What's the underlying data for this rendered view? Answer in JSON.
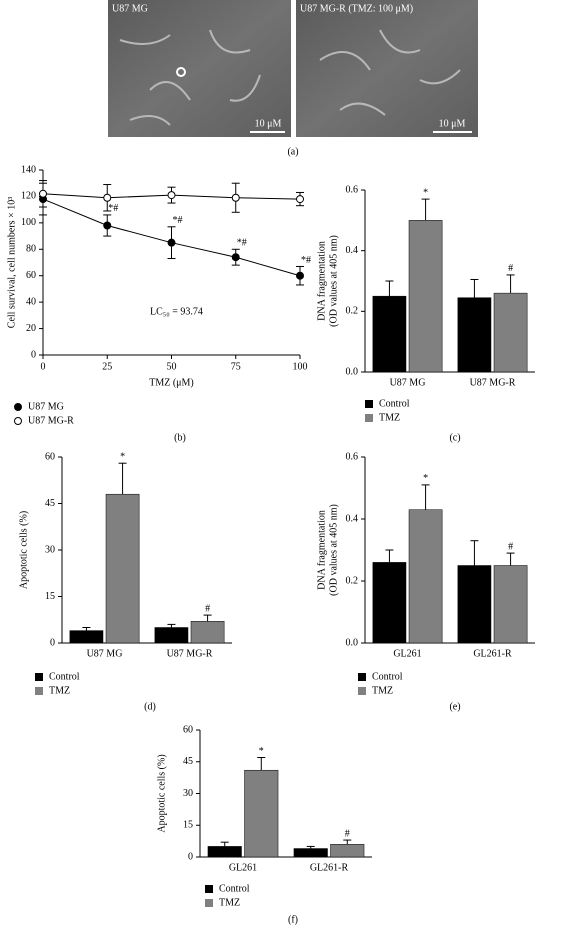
{
  "images": {
    "panel": "(a)",
    "left_label": "U87 MG",
    "right_label": "U87 MG-R (TMZ: 100 μM)",
    "left_scale": "10 μM",
    "right_scale": "10 μM"
  },
  "chart_data": [
    {
      "type": "line",
      "panel": "(b)",
      "ylabel": "Cell survival, cell numbers × 10³",
      "xlabel": "TMZ (μM)",
      "x": [
        0,
        25,
        50,
        75,
        100
      ],
      "xlim": [
        0,
        100
      ],
      "xticks": [
        0,
        25,
        50,
        75,
        100
      ],
      "ylim": [
        0,
        140
      ],
      "yticks": [
        0,
        20,
        40,
        60,
        80,
        100,
        120,
        140
      ],
      "annotation": "LC₅₀ = 93.74",
      "series": [
        {
          "name": "U87 MG",
          "color": "#000000",
          "fill": "#000000",
          "values": [
            118,
            98,
            85,
            74,
            60
          ],
          "errors": [
            12,
            8,
            12,
            6,
            7
          ],
          "annotations": [
            null,
            "*#",
            "*#",
            "*#",
            "*#"
          ]
        },
        {
          "name": "U87 MG-R",
          "color": "#000000",
          "fill": "#ffffff",
          "values": [
            122,
            119,
            121,
            119,
            118
          ],
          "errors": [
            10,
            10,
            6,
            11,
            5
          ],
          "annotations": [
            null,
            null,
            null,
            null,
            null
          ]
        }
      ]
    },
    {
      "type": "bar",
      "panel": "(c)",
      "ylabel": [
        "DNA fragmentation",
        "(OD values at 405 nm)"
      ],
      "categories": [
        "U87 MG",
        "U87 MG-R"
      ],
      "ylim": [
        0,
        0.6
      ],
      "yticks": [
        {
          "value": 0,
          "label": "0.0"
        },
        0.2,
        0.4,
        0.6
      ],
      "series": [
        {
          "name": "Control",
          "color": "#000000",
          "values": [
            0.25,
            0.245
          ],
          "errors": [
            0.05,
            0.06
          ],
          "annotations": [
            null,
            null
          ]
        },
        {
          "name": "TMZ",
          "color": "#808080",
          "values": [
            0.5,
            0.26
          ],
          "errors": [
            0.07,
            0.06
          ],
          "annotations": [
            "*",
            "#"
          ]
        }
      ]
    },
    {
      "type": "bar",
      "panel": "(d)",
      "ylabel": "Apoptotic cells (%)",
      "categories": [
        "U87 MG",
        "U87 MG-R"
      ],
      "ylim": [
        0,
        60
      ],
      "yticks": [
        0,
        15,
        30,
        45,
        60
      ],
      "series": [
        {
          "name": "Control",
          "color": "#000000",
          "values": [
            4,
            5
          ],
          "errors": [
            1,
            1
          ],
          "annotations": [
            null,
            null
          ]
        },
        {
          "name": "TMZ",
          "color": "#808080",
          "values": [
            48,
            7
          ],
          "errors": [
            10,
            2
          ],
          "annotations": [
            "*",
            "#"
          ]
        }
      ]
    },
    {
      "type": "bar",
      "panel": "(e)",
      "ylabel": [
        "DNA fragmentation",
        "(OD values at 405 nm)"
      ],
      "categories": [
        "GL261",
        "GL261-R"
      ],
      "ylim": [
        0,
        0.6
      ],
      "yticks": [
        {
          "value": 0,
          "label": "0.0"
        },
        0.2,
        0.4,
        0.6
      ],
      "series": [
        {
          "name": "Control",
          "color": "#000000",
          "values": [
            0.26,
            0.25
          ],
          "errors": [
            0.04,
            0.08
          ],
          "annotations": [
            null,
            null
          ]
        },
        {
          "name": "TMZ",
          "color": "#808080",
          "values": [
            0.43,
            0.25
          ],
          "errors": [
            0.08,
            0.04
          ],
          "annotations": [
            "*",
            "#"
          ]
        }
      ]
    },
    {
      "type": "bar",
      "panel": "(f)",
      "ylabel": "Apoptotic cells (%)",
      "categories": [
        "GL261",
        "GL261-R"
      ],
      "ylim": [
        0,
        60
      ],
      "yticks": [
        0,
        15,
        30,
        45,
        60
      ],
      "series": [
        {
          "name": "Control",
          "color": "#000000",
          "values": [
            5,
            4
          ],
          "errors": [
            2,
            1
          ],
          "annotations": [
            null,
            null
          ]
        },
        {
          "name": "TMZ",
          "color": "#808080",
          "values": [
            41,
            6
          ],
          "errors": [
            6,
            2
          ],
          "annotations": [
            "*",
            "#"
          ]
        }
      ]
    }
  ]
}
